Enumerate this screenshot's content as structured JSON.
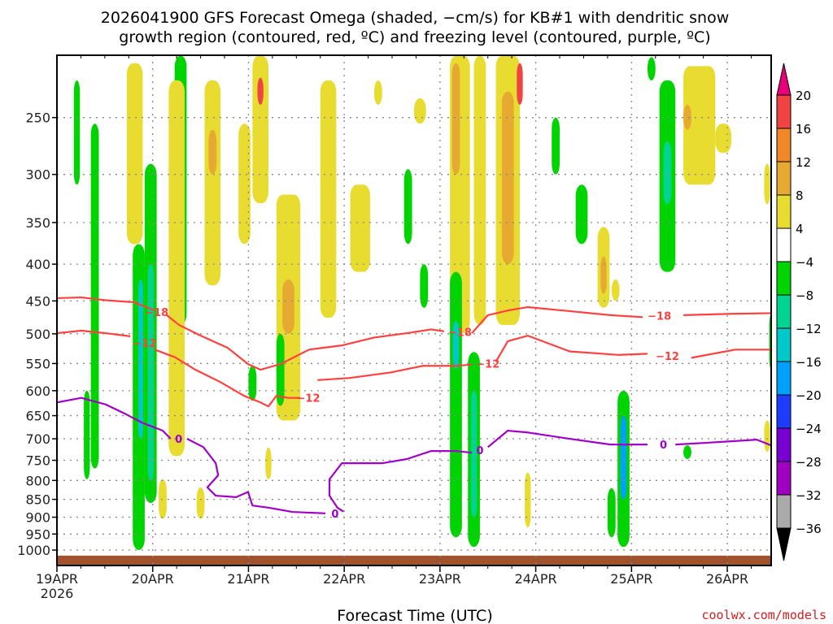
{
  "chart_data": {
    "type": "heatmap",
    "title_line1": "2026041900 GFS Forecast Omega (shaded, −cm/s) for KB#1 with dendritic snow",
    "title_line2": "growth region (contoured, red, ºC) and freezing level (contoured, purple, ºC)",
    "xlabel": "Forecast Time (UTC)",
    "credit": "coolwx.com/models",
    "x_units": "hours since 19APR 00Z",
    "xlim": [
      0,
      179
    ],
    "ylim_hPa": [
      205,
      1050
    ],
    "y_scale": "log-pressure",
    "grid": true,
    "x_ticks": [
      {
        "h": 0,
        "label": "19APR",
        "sub": "2026"
      },
      {
        "h": 24,
        "label": "20APR"
      },
      {
        "h": 48,
        "label": "21APR"
      },
      {
        "h": 72,
        "label": "22APR"
      },
      {
        "h": 96,
        "label": "23APR"
      },
      {
        "h": 120,
        "label": "24APR"
      },
      {
        "h": 144,
        "label": "25APR"
      },
      {
        "h": 168,
        "label": "26APR"
      }
    ],
    "y_ticks": [
      250,
      300,
      350,
      400,
      450,
      500,
      550,
      600,
      650,
      700,
      750,
      800,
      850,
      900,
      950,
      1000
    ],
    "colorbar": {
      "labels": [
        "20",
        "16",
        "12",
        "8",
        "4",
        "−4",
        "−8",
        "−12",
        "−16",
        "−20",
        "−24",
        "−28",
        "−32",
        "−36"
      ],
      "colors": [
        "#f04444",
        "#f0882a",
        "#e6aa32",
        "#e8dc30",
        "#ffffff",
        "#00d400",
        "#00d490",
        "#00c8c8",
        "#00a0ff",
        "#1e3cff",
        "#7800d2",
        "#a000c0",
        "#aaaaaa"
      ],
      "over_color": "#e8007a",
      "under_color": "#000000"
    },
    "surface_pressure_hPa": 1018,
    "terrain_color": "#a0522d",
    "omega_cells": [
      {
        "h": 5,
        "w": 1.5,
        "p1": 222,
        "p2": 310,
        "v": -6
      },
      {
        "h": 9.5,
        "w": 2,
        "p1": 255,
        "p2": 770,
        "v": -6
      },
      {
        "h": 7.5,
        "w": 1.5,
        "p1": 600,
        "p2": 797,
        "v": -6
      },
      {
        "h": 19.5,
        "w": 4,
        "p1": 210,
        "p2": 375,
        "v": 6
      },
      {
        "h": 20.5,
        "w": 3,
        "p1": 375,
        "p2": 1000,
        "v": -6
      },
      {
        "h": 23.5,
        "w": 3,
        "p1": 290,
        "p2": 860,
        "v": -8
      },
      {
        "h": 31,
        "w": 3,
        "p1": 205,
        "p2": 486,
        "v": -6
      },
      {
        "h": 30,
        "w": 4,
        "p1": 222,
        "p2": 740,
        "v": 6
      },
      {
        "h": 39,
        "w": 4,
        "p1": 222,
        "p2": 428,
        "v": 6
      },
      {
        "h": 47,
        "w": 3,
        "p1": 255,
        "p2": 375,
        "v": 6
      },
      {
        "h": 51,
        "w": 4,
        "p1": 205,
        "p2": 329,
        "v": 6
      },
      {
        "h": 49,
        "w": 2,
        "p1": 554,
        "p2": 620,
        "v": -6
      },
      {
        "h": 58,
        "w": 6,
        "p1": 320,
        "p2": 660,
        "v": 6
      },
      {
        "h": 56,
        "w": 2,
        "p1": 500,
        "p2": 630,
        "v": -6
      },
      {
        "h": 68,
        "w": 4,
        "p1": 222,
        "p2": 475,
        "v": 6
      },
      {
        "h": 76,
        "w": 5,
        "p1": 310,
        "p2": 410,
        "v": 6
      },
      {
        "h": 80.5,
        "w": 2,
        "p1": 222,
        "p2": 240,
        "v": 6
      },
      {
        "h": 88,
        "w": 2,
        "p1": 295,
        "p2": 375,
        "v": -6
      },
      {
        "h": 92,
        "w": 2,
        "p1": 400,
        "p2": 460,
        "v": -6
      },
      {
        "h": 91,
        "w": 3,
        "p1": 235,
        "p2": 255,
        "v": 6
      },
      {
        "h": 101,
        "w": 5,
        "p1": 205,
        "p2": 499,
        "v": 6
      },
      {
        "h": 100,
        "w": 3,
        "p1": 410,
        "p2": 960,
        "v": -8
      },
      {
        "h": 104.5,
        "w": 3,
        "p1": 530,
        "p2": 990,
        "v": -6
      },
      {
        "h": 106,
        "w": 3,
        "p1": 205,
        "p2": 486,
        "v": 6
      },
      {
        "h": 113,
        "w": 6,
        "p1": 205,
        "p2": 486,
        "v": 6
      },
      {
        "h": 125,
        "w": 2,
        "p1": 250,
        "p2": 300,
        "v": -6
      },
      {
        "h": 131.5,
        "w": 3,
        "p1": 310,
        "p2": 375,
        "v": -6
      },
      {
        "h": 137,
        "w": 3,
        "p1": 355,
        "p2": 460,
        "v": 6
      },
      {
        "h": 140,
        "w": 2,
        "p1": 420,
        "p2": 450,
        "v": 6
      },
      {
        "h": 142,
        "w": 3,
        "p1": 600,
        "p2": 990,
        "v": -8
      },
      {
        "h": 139,
        "w": 2,
        "p1": 820,
        "p2": 960,
        "v": -6
      },
      {
        "h": 153,
        "w": 4,
        "p1": 222,
        "p2": 410,
        "v": -6
      },
      {
        "h": 161,
        "w": 8,
        "p1": 212,
        "p2": 310,
        "v": 6
      },
      {
        "h": 167,
        "w": 4,
        "p1": 255,
        "p2": 280,
        "v": 6
      },
      {
        "h": 178,
        "w": 1.5,
        "p1": 290,
        "p2": 330,
        "v": 6
      },
      {
        "h": 179,
        "w": 1,
        "p1": 470,
        "p2": 560,
        "v": -6
      },
      {
        "h": 178,
        "w": 1.5,
        "p1": 660,
        "p2": 730,
        "v": 6
      },
      {
        "h": 158,
        "w": 2,
        "p1": 715,
        "p2": 747,
        "v": -6
      },
      {
        "h": 149,
        "w": 2,
        "p1": 206,
        "p2": 222,
        "v": -6
      },
      {
        "h": 26.5,
        "w": 2,
        "p1": 797,
        "p2": 905,
        "v": 6
      },
      {
        "h": 36,
        "w": 2,
        "p1": 818,
        "p2": 905,
        "v": 6
      },
      {
        "h": 118,
        "w": 1.5,
        "p1": 780,
        "p2": 930,
        "v": 6
      },
      {
        "h": 53,
        "w": 1.5,
        "p1": 720,
        "p2": 797,
        "v": 6
      },
      {
        "h": 21,
        "w": 1.2,
        "p1": 420,
        "p2": 700,
        "v": -14
      },
      {
        "h": 23.5,
        "w": 1.5,
        "p1": 400,
        "p2": 800,
        "v": -12
      },
      {
        "h": 39,
        "w": 2,
        "p1": 260,
        "p2": 300,
        "v": 10
      },
      {
        "h": 51,
        "w": 1.5,
        "p1": 220,
        "p2": 240,
        "v": 18
      },
      {
        "h": 58,
        "w": 3,
        "p1": 420,
        "p2": 500,
        "v": 10
      },
      {
        "h": 100,
        "w": 2,
        "p1": 210,
        "p2": 300,
        "v": 10
      },
      {
        "h": 100,
        "w": 1.5,
        "p1": 480,
        "p2": 560,
        "v": -14
      },
      {
        "h": 104.5,
        "w": 1.5,
        "p1": 600,
        "p2": 900,
        "v": -10
      },
      {
        "h": 113,
        "w": 3,
        "p1": 230,
        "p2": 400,
        "v": 10
      },
      {
        "h": 116,
        "w": 1.5,
        "p1": 210,
        "p2": 240,
        "v": 18
      },
      {
        "h": 137,
        "w": 1.5,
        "p1": 390,
        "p2": 440,
        "v": 10
      },
      {
        "h": 142,
        "w": 1.5,
        "p1": 650,
        "p2": 850,
        "v": -18
      },
      {
        "h": 153,
        "w": 2,
        "p1": 270,
        "p2": 330,
        "v": -12
      },
      {
        "h": 158,
        "w": 2,
        "p1": 240,
        "p2": 260,
        "v": 10
      }
    ],
    "contours": [
      {
        "level": -18,
        "kind": "dgz",
        "segments": [
          [
            [
              0,
              446
            ],
            [
              6.1,
              445
            ],
            [
              12.2,
              449
            ],
            [
              19.4,
              452
            ],
            [
              24.5,
              464
            ]
          ],
          [
            [
              27.5,
              471
            ],
            [
              30.6,
              486
            ],
            [
              35.7,
              502
            ],
            [
              42.8,
              523
            ],
            [
              47.9,
              551
            ],
            [
              51,
              561
            ],
            [
              56,
              551
            ],
            [
              63.2,
              526
            ],
            [
              71.4,
              519
            ],
            [
              79.5,
              506
            ],
            [
              87.7,
              499
            ],
            [
              93.8,
              493
            ],
            [
              97,
              496
            ]
          ],
          [
            [
              104,
              499
            ],
            [
              108,
              471
            ],
            [
              113,
              464
            ],
            [
              118,
              459
            ],
            [
              128.5,
              465
            ],
            [
              138.7,
              471
            ],
            [
              146.8,
              474
            ]
          ],
          [
            [
              157,
              471
            ],
            [
              169,
              469
            ],
            [
              179,
              468
            ]
          ]
        ],
        "labels": [
          [
            25,
            466
          ],
          [
            101,
            497
          ],
          [
            151,
            472
          ]
        ]
      },
      {
        "level": -12,
        "kind": "dgz",
        "segments": [
          [
            [
              0,
              499
            ],
            [
              6.1,
              495
            ],
            [
              12.2,
              499
            ],
            [
              18.4,
              504
            ]
          ],
          [
            [
              24.5,
              526
            ],
            [
              29.6,
              539
            ],
            [
              34.7,
              561
            ],
            [
              40.8,
              583
            ],
            [
              46.9,
              610
            ],
            [
              51,
              623
            ],
            [
              53,
              631
            ],
            [
              55,
              610
            ],
            [
              58,
              614
            ],
            [
              61,
              614
            ]
          ],
          [
            [
              65.3,
              580
            ],
            [
              73.4,
              576
            ],
            [
              83.6,
              566
            ],
            [
              91.8,
              554
            ],
            [
              100,
              554
            ],
            [
              104,
              552
            ]
          ],
          [
            [
              110,
              547
            ],
            [
              113,
              512
            ],
            [
              118,
              503
            ],
            [
              128.5,
              529
            ],
            [
              140.7,
              535
            ],
            [
              148,
              533
            ]
          ],
          [
            [
              159,
              540
            ],
            [
              170,
              526
            ],
            [
              179,
              526
            ]
          ]
        ],
        "labels": [
          [
            22,
            515
          ],
          [
            63,
            614
          ],
          [
            108,
            550
          ],
          [
            153,
            537
          ]
        ]
      },
      {
        "level": 0,
        "kind": "freezing",
        "segments": [
          [
            [
              0,
              623
            ],
            [
              6.1,
              614
            ],
            [
              12.2,
              627
            ],
            [
              17.3,
              647
            ],
            [
              21.4,
              665
            ],
            [
              26.5,
              682
            ],
            [
              28.5,
              700
            ]
          ],
          [
            [
              32.6,
              700
            ],
            [
              36.7,
              719
            ],
            [
              39.8,
              757
            ],
            [
              40.4,
              787
            ],
            [
              37.7,
              818
            ],
            [
              39.8,
              840
            ],
            [
              44.9,
              844
            ],
            [
              47.9,
              830
            ],
            [
              49,
              867
            ],
            [
              53,
              873
            ],
            [
              59,
              885
            ],
            [
              67.3,
              889
            ]
          ],
          [
            [
              71.8,
              884
            ],
            [
              70.3,
              873
            ],
            [
              68.3,
              840
            ],
            [
              68.3,
              797
            ],
            [
              71.4,
              757
            ],
            [
              75.4,
              757
            ],
            [
              81.6,
              757
            ],
            [
              87.7,
              747
            ],
            [
              93.8,
              728
            ],
            [
              100,
              728
            ],
            [
              104,
              732
            ]
          ],
          [
            [
              108,
              719
            ],
            [
              113,
              682
            ],
            [
              118,
              686
            ],
            [
              128.5,
              700
            ],
            [
              138.7,
              713
            ],
            [
              148,
              713
            ]
          ],
          [
            [
              155,
              713
            ],
            [
              163,
              709
            ],
            [
              175.4,
              702
            ],
            [
              179,
              715
            ]
          ]
        ],
        "labels": [
          [
            30.5,
            700
          ],
          [
            69.7,
            889
          ],
          [
            106,
            726
          ],
          [
            152,
            713
          ]
        ]
      }
    ]
  }
}
